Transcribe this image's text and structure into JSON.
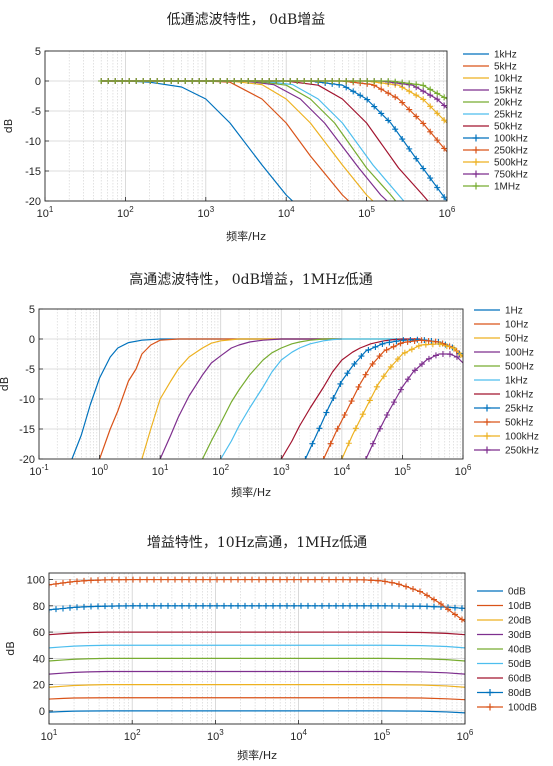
{
  "chart_data": [
    {
      "type": "line",
      "title": "低通滤波特性， 0dB增益",
      "xlabel": "频率/Hz",
      "ylabel": "dB",
      "xscale": "log",
      "xlim": [
        10,
        1000000
      ],
      "ylim": [
        -20,
        5
      ],
      "yticks": [
        5,
        0,
        -5,
        -10,
        -15,
        -20
      ],
      "xtick_labels": [
        "10^1",
        "10^2",
        "10^3",
        "10^4",
        "10^5",
        "10^6"
      ],
      "grid": true,
      "legend": "outside-right",
      "series": [
        {
          "name": "1kHz",
          "color": "#0072BD",
          "marker": "none",
          "x": [
            50,
            100,
            200,
            500,
            1000,
            2000,
            5000,
            10000,
            12000
          ],
          "y": [
            0,
            0,
            -0.2,
            -1,
            -3,
            -7,
            -14,
            -19,
            -20
          ]
        },
        {
          "name": "5kHz",
          "color": "#D95319",
          "marker": "none",
          "x": [
            50,
            1000,
            2000,
            5000,
            10000,
            20000,
            50000,
            60000
          ],
          "y": [
            0,
            0,
            -0.2,
            -3,
            -7,
            -12.5,
            -19,
            -20
          ]
        },
        {
          "name": "10kHz",
          "color": "#EDB120",
          "marker": "none",
          "x": [
            50,
            2000,
            5000,
            10000,
            20000,
            50000,
            100000,
            120000
          ],
          "y": [
            0,
            0,
            -0.6,
            -3,
            -7,
            -14,
            -19,
            -20
          ]
        },
        {
          "name": "15kHz",
          "color": "#7E2F8E",
          "marker": "none",
          "x": [
            50,
            3000,
            7000,
            15000,
            30000,
            80000,
            150000,
            180000
          ],
          "y": [
            0,
            0,
            -0.6,
            -3,
            -7,
            -14.5,
            -19,
            -20
          ]
        },
        {
          "name": "20kHz",
          "color": "#77AC30",
          "marker": "none",
          "x": [
            50,
            4000,
            10000,
            20000,
            40000,
            100000,
            200000,
            230000
          ],
          "y": [
            0,
            0,
            -0.7,
            -3,
            -7,
            -14.5,
            -19,
            -20
          ]
        },
        {
          "name": "25kHz",
          "color": "#4DBEEE",
          "marker": "none",
          "x": [
            50,
            5000,
            12000,
            25000,
            50000,
            120000,
            250000,
            290000
          ],
          "y": [
            0,
            0,
            -0.6,
            -3,
            -7,
            -14,
            -19,
            -20
          ]
        },
        {
          "name": "50kHz",
          "color": "#A2142F",
          "marker": "none",
          "x": [
            50,
            10000,
            25000,
            50000,
            100000,
            250000,
            500000,
            580000
          ],
          "y": [
            0,
            0,
            -0.7,
            -3,
            -7,
            -14.5,
            -19,
            -20
          ]
        },
        {
          "name": "100kHz",
          "color": "#0072BD",
          "marker": "plus",
          "x": [
            50,
            20000,
            50000,
            100000,
            200000,
            500000,
            1000000
          ],
          "y": [
            0,
            0,
            -0.7,
            -3,
            -7,
            -14.5,
            -20
          ]
        },
        {
          "name": "250kHz",
          "color": "#D95319",
          "marker": "plus",
          "x": [
            50,
            50000,
            120000,
            250000,
            500000,
            1000000
          ],
          "y": [
            0,
            0,
            -0.6,
            -3,
            -7,
            -11.8
          ]
        },
        {
          "name": "500kHz",
          "color": "#EDB120",
          "marker": "plus",
          "x": [
            50,
            100000,
            250000,
            500000,
            1000000
          ],
          "y": [
            0,
            0,
            -0.7,
            -3,
            -7
          ]
        },
        {
          "name": "750kHz",
          "color": "#7E2F8E",
          "marker": "plus",
          "x": [
            50,
            150000,
            375000,
            750000,
            1000000
          ],
          "y": [
            0,
            0,
            -0.7,
            -3,
            -4.5
          ]
        },
        {
          "name": "1MHz",
          "color": "#77AC30",
          "marker": "plus",
          "x": [
            50,
            200000,
            500000,
            1000000
          ],
          "y": [
            0,
            0,
            -0.7,
            -3
          ]
        }
      ]
    },
    {
      "type": "line",
      "title": "高通滤波特性， 0dB增益，1MHz低通",
      "xlabel": "频率/Hz",
      "ylabel": "dB",
      "xscale": "log",
      "xlim": [
        0.1,
        1000000
      ],
      "ylim": [
        -20,
        5
      ],
      "yticks": [
        5,
        0,
        -5,
        -10,
        -15,
        -20
      ],
      "xtick_labels": [
        "10^-1",
        "10^0",
        "10^1",
        "10^2",
        "10^3",
        "10^4",
        "10^5",
        "10^6"
      ],
      "grid": true,
      "legend": "outside-right",
      "series": [
        {
          "name": "1Hz",
          "color": "#0072BD",
          "marker": "none",
          "x": [
            0.35,
            0.5,
            0.7,
            1,
            1.5,
            2,
            3,
            5,
            10,
            100,
            1000,
            10000
          ],
          "y": [
            -20,
            -16,
            -11,
            -6.5,
            -3,
            -1.5,
            -0.6,
            -0.2,
            0,
            0,
            0,
            0
          ]
        },
        {
          "name": "10Hz",
          "color": "#D95319",
          "marker": "none",
          "x": [
            1,
            1.5,
            2,
            3,
            4,
            5,
            7,
            10,
            20,
            50,
            100,
            10000
          ],
          "y": [
            -20,
            -15,
            -12,
            -7,
            -5,
            -2.5,
            -1,
            -0.2,
            0,
            0,
            0,
            0
          ]
        },
        {
          "name": "50Hz",
          "color": "#EDB120",
          "marker": "none",
          "x": [
            5,
            7,
            10,
            15,
            20,
            30,
            50,
            70,
            100,
            200,
            500,
            10000
          ],
          "y": [
            -20,
            -15,
            -10,
            -7,
            -5,
            -3,
            -1.5,
            -0.7,
            -0.3,
            0,
            0,
            0
          ]
        },
        {
          "name": "100Hz",
          "color": "#7E2F8E",
          "marker": "none",
          "x": [
            10,
            15,
            20,
            30,
            50,
            70,
            100,
            150,
            200,
            300,
            500,
            1000,
            10000
          ],
          "y": [
            -20,
            -16,
            -13,
            -9.5,
            -6,
            -4,
            -2.8,
            -1.5,
            -1,
            -0.5,
            -0.2,
            0,
            0
          ]
        },
        {
          "name": "500Hz",
          "color": "#77AC30",
          "marker": "none",
          "x": [
            50,
            70,
            100,
            150,
            200,
            300,
            500,
            700,
            1000,
            1500,
            2000,
            3000,
            5000,
            100000
          ],
          "y": [
            -20,
            -17,
            -14,
            -10.5,
            -8.5,
            -6,
            -3.5,
            -2.3,
            -1.5,
            -0.8,
            -0.5,
            -0.2,
            0,
            0
          ]
        },
        {
          "name": "1kHz",
          "color": "#4DBEEE",
          "marker": "none",
          "x": [
            100,
            150,
            200,
            300,
            500,
            700,
            1000,
            1500,
            2000,
            3000,
            5000,
            7000,
            10000,
            100000
          ],
          "y": [
            -20,
            -17,
            -14.5,
            -11.5,
            -8,
            -5.5,
            -3.5,
            -2.2,
            -1.5,
            -0.8,
            -0.3,
            -0.1,
            0,
            0
          ]
        },
        {
          "name": "10kHz",
          "color": "#A2142F",
          "marker": "none",
          "x": [
            1000,
            1500,
            2000,
            3000,
            5000,
            7000,
            10000,
            15000,
            20000,
            30000,
            50000,
            70000,
            100000,
            200000
          ],
          "y": [
            -20,
            -17,
            -14.5,
            -11.5,
            -8,
            -5.5,
            -3.5,
            -2.2,
            -1.5,
            -0.8,
            -0.3,
            -0.1,
            0,
            0
          ]
        },
        {
          "name": "25kHz",
          "color": "#0072BD",
          "marker": "plus",
          "x": [
            2500,
            4000,
            6000,
            10000,
            15000,
            25000,
            50000,
            100000,
            200000,
            400000,
            700000,
            1000000
          ],
          "y": [
            -20,
            -15.5,
            -11.5,
            -7,
            -4.5,
            -2,
            -0.7,
            -0.2,
            -0.1,
            -0.5,
            -1.5,
            -3
          ]
        },
        {
          "name": "50kHz",
          "color": "#D95319",
          "marker": "plus",
          "x": [
            5000,
            8000,
            12000,
            20000,
            30000,
            50000,
            100000,
            200000,
            400000,
            700000,
            1000000
          ],
          "y": [
            -20,
            -15.5,
            -12,
            -7.5,
            -4.5,
            -2,
            -0.6,
            -0.2,
            -0.5,
            -1.5,
            -3
          ]
        },
        {
          "name": "100kHz",
          "color": "#EDB120",
          "marker": "plus",
          "x": [
            10000,
            15000,
            25000,
            40000,
            60000,
            100000,
            200000,
            400000,
            700000,
            1000000
          ],
          "y": [
            -20,
            -16,
            -11.5,
            -7.5,
            -5,
            -2.5,
            -1,
            -0.8,
            -1.5,
            -3
          ]
        },
        {
          "name": "250kHz",
          "color": "#7E2F8E",
          "marker": "plus",
          "x": [
            25000,
            40000,
            60000,
            100000,
            150000,
            250000,
            400000,
            600000,
            800000,
            1000000
          ],
          "y": [
            -20,
            -15.5,
            -12,
            -8,
            -5.5,
            -3.5,
            -2.5,
            -2.5,
            -3,
            -4
          ]
        }
      ]
    },
    {
      "type": "line",
      "title": "增益特性，10Hz高通，1MHz低通",
      "xlabel": "频率/Hz",
      "ylabel": "dB",
      "xscale": "log",
      "xlim": [
        10,
        1000000
      ],
      "ylim": [
        -10,
        105
      ],
      "yticks": [
        100,
        80,
        60,
        40,
        20,
        0
      ],
      "xtick_labels": [
        "10^1",
        "10^2",
        "10^3",
        "10^4",
        "10^5",
        "10^6"
      ],
      "grid": true,
      "legend": "outside-right",
      "series": [
        {
          "name": "0dB",
          "color": "#0072BD",
          "marker": "none",
          "x": [
            10,
            15,
            20,
            30,
            50,
            100,
            100000,
            300000,
            600000,
            1000000
          ],
          "y": [
            -1,
            -0.5,
            -0.2,
            -0.1,
            0,
            0,
            0,
            -0.2,
            -0.8,
            -1.5
          ]
        },
        {
          "name": "10dB",
          "color": "#D95319",
          "marker": "none",
          "x": [
            10,
            15,
            20,
            30,
            50,
            100,
            100000,
            300000,
            600000,
            1000000
          ],
          "y": [
            9,
            9.5,
            9.8,
            9.9,
            10,
            10,
            10,
            9.8,
            9.2,
            8.5
          ]
        },
        {
          "name": "20dB",
          "color": "#EDB120",
          "marker": "none",
          "x": [
            10,
            15,
            20,
            30,
            50,
            100,
            100000,
            300000,
            600000,
            1000000
          ],
          "y": [
            18,
            18.8,
            19.3,
            19.7,
            20,
            20,
            20,
            19.7,
            19,
            18
          ]
        },
        {
          "name": "30dB",
          "color": "#7E2F8E",
          "marker": "none",
          "x": [
            10,
            15,
            20,
            30,
            50,
            100,
            100000,
            300000,
            600000,
            1000000
          ],
          "y": [
            28,
            28.8,
            29.3,
            29.7,
            30,
            30,
            30,
            29.7,
            29,
            28
          ]
        },
        {
          "name": "40dB",
          "color": "#77AC30",
          "marker": "none",
          "x": [
            10,
            15,
            20,
            30,
            50,
            100,
            100000,
            300000,
            600000,
            1000000
          ],
          "y": [
            38,
            38.8,
            39.3,
            39.7,
            40,
            40,
            40,
            39.7,
            39,
            38
          ]
        },
        {
          "name": "50dB",
          "color": "#4DBEEE",
          "marker": "none",
          "x": [
            10,
            15,
            20,
            30,
            50,
            100,
            100000,
            300000,
            600000,
            1000000
          ],
          "y": [
            48,
            48.8,
            49.3,
            49.7,
            50,
            50,
            50,
            49.7,
            49,
            48
          ]
        },
        {
          "name": "60dB",
          "color": "#A2142F",
          "marker": "none",
          "x": [
            10,
            15,
            20,
            30,
            50,
            100,
            100000,
            300000,
            600000,
            1000000
          ],
          "y": [
            58,
            58.8,
            59.3,
            59.7,
            60,
            60,
            60,
            59.7,
            59,
            58
          ]
        },
        {
          "name": "80dB",
          "color": "#0072BD",
          "marker": "plus",
          "x": [
            10,
            15,
            20,
            30,
            50,
            100,
            100000,
            300000,
            600000,
            1000000
          ],
          "y": [
            77,
            78,
            78.8,
            79.4,
            79.8,
            80,
            80,
            79.7,
            79,
            78
          ]
        },
        {
          "name": "100dB",
          "color": "#D95319",
          "marker": "plus",
          "x": [
            10,
            15,
            20,
            30,
            50,
            100,
            30000,
            60000,
            100000,
            150000,
            200000,
            300000,
            500000,
            700000,
            1000000
          ],
          "y": [
            96,
            97.5,
            98.5,
            99.3,
            99.8,
            100,
            100,
            99.8,
            99,
            97,
            94.5,
            90.5,
            82,
            75,
            68
          ]
        }
      ]
    }
  ]
}
